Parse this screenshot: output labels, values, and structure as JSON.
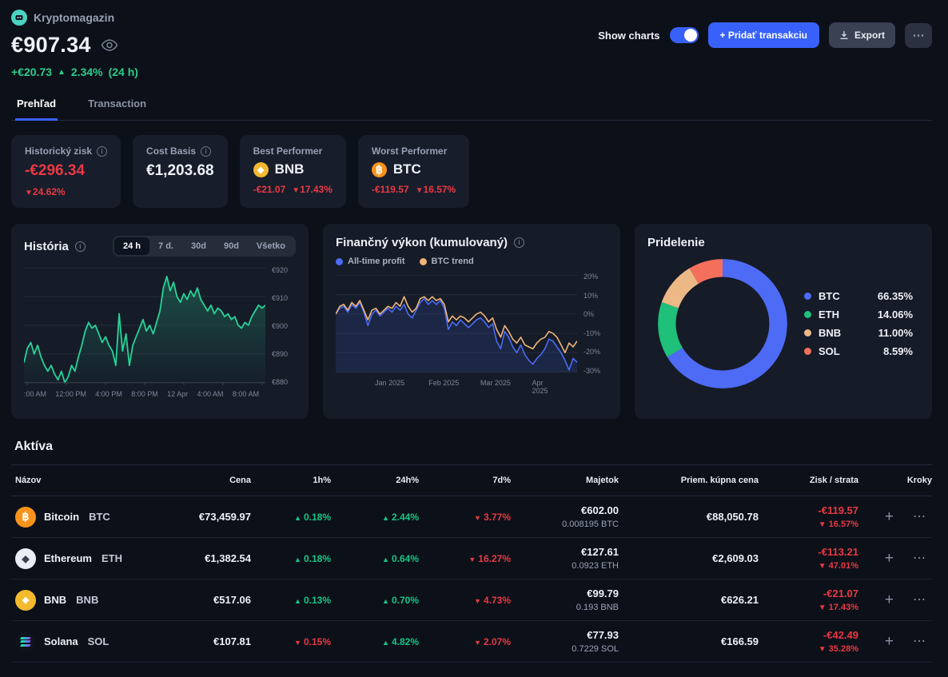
{
  "app": {
    "name": "Kryptomagazin"
  },
  "header": {
    "balance": "€907.34",
    "change_amount": "+€20.73",
    "change_pct": "2.34%",
    "change_period": "(24 h)",
    "show_charts_label": "Show charts",
    "add_transaction_label": "+ Pridať transakciu",
    "export_label": "Export",
    "more_label": "⋯"
  },
  "tabs": [
    {
      "label": "Prehľad",
      "active": true
    },
    {
      "label": "Transaction",
      "active": false
    }
  ],
  "stat_cards": [
    {
      "label": "Historický zisk",
      "value": "-€296.34",
      "change_pct": "24.62%",
      "direction": "down"
    },
    {
      "label": "Cost Basis",
      "value": "€1,203.68"
    },
    {
      "label": "Best Performer",
      "coin": "BNB",
      "change_amount": "-€21.07",
      "change_pct": "17.43%",
      "direction": "down"
    },
    {
      "label": "Worst Performer",
      "coin": "BTC",
      "change_amount": "-€119.57",
      "change_pct": "16.57%",
      "direction": "down"
    }
  ],
  "history": {
    "title": "História",
    "ranges": [
      "24 h",
      "7 d.",
      "30d",
      "90d",
      "Všetko"
    ],
    "active_range": "24 h",
    "y_ticks": [
      "€920",
      "€910",
      "€900",
      "€890",
      "€880"
    ],
    "x_ticks": [
      ":00 AM",
      "12:00 PM",
      "4:00 PM",
      "8:00 PM",
      "12 Apr",
      "4:00 AM",
      "8:00 AM"
    ],
    "y_min": 880,
    "y_max": 920,
    "line_color": "#27d397",
    "values": [
      887,
      892,
      894,
      890,
      893,
      889,
      886,
      884,
      886,
      883,
      881,
      884,
      880,
      882,
      886,
      884,
      889,
      893,
      898,
      901,
      899,
      900,
      897,
      894,
      896,
      893,
      891,
      886,
      904,
      891,
      897,
      886,
      893,
      896,
      899,
      902,
      898,
      900,
      897,
      901,
      905,
      913,
      917,
      912,
      915,
      910,
      908,
      911,
      909,
      912,
      910,
      913,
      909,
      907,
      905,
      907,
      904,
      906,
      905,
      903,
      904,
      902,
      903,
      900,
      899,
      901,
      900,
      903,
      905,
      907,
      906,
      907
    ]
  },
  "performance": {
    "title": "Finančný výkon (kumulovaný)",
    "y_ticks": [
      "20%",
      "10%",
      "0%",
      "-10%",
      "-20%",
      "-30%"
    ],
    "x_ticks": [
      "Jan 2025",
      "Feb 2025",
      "Mar 2025",
      "Apr 2025"
    ],
    "x_tick_pos": [
      23,
      46,
      68,
      89
    ],
    "y_min": -30,
    "y_max": 20,
    "series": [
      {
        "name": "All-time profit",
        "color": "#4a6cf5",
        "values": [
          0,
          3,
          4,
          1,
          5,
          3,
          6,
          1,
          -6,
          0,
          2,
          -1,
          1,
          3,
          1,
          4,
          2,
          5,
          0,
          -2,
          2,
          6,
          8,
          5,
          7,
          5,
          7,
          3,
          -8,
          -4,
          -6,
          -3,
          -5,
          -7,
          -5,
          -3,
          -2,
          -4,
          -7,
          -5,
          -14,
          -18,
          -9,
          -12,
          -17,
          -20,
          -16,
          -21,
          -24,
          -26,
          -23,
          -21,
          -18,
          -13,
          -14,
          -17,
          -20,
          -24,
          -29,
          -23,
          -25
        ]
      },
      {
        "name": "BTC trend",
        "color": "#efb477",
        "values": [
          0,
          4,
          5,
          2,
          6,
          4,
          7,
          2,
          -3,
          2,
          3,
          0,
          2,
          4,
          3,
          6,
          4,
          9,
          4,
          1,
          3,
          8,
          9,
          7,
          9,
          7,
          8,
          5,
          -4,
          -1,
          -3,
          -1,
          -2,
          -4,
          -2,
          0,
          1,
          -1,
          -4,
          -2,
          -8,
          -12,
          -6,
          -9,
          -13,
          -15,
          -12,
          -16,
          -17,
          -18,
          -15,
          -13,
          -12,
          -9,
          -10,
          -12,
          -16,
          -20,
          -15,
          -17,
          -14
        ]
      }
    ]
  },
  "allocation": {
    "title": "Pridelenie",
    "items": [
      {
        "label": "BTC",
        "pct": "66.35%",
        "value": 66.35,
        "color": "#4e6bf5"
      },
      {
        "label": "ETH",
        "pct": "14.06%",
        "value": 14.06,
        "color": "#1ec07a"
      },
      {
        "label": "BNB",
        "pct": "11.00%",
        "value": 11.0,
        "color": "#ecb886"
      },
      {
        "label": "SOL",
        "pct": "8.59%",
        "value": 8.59,
        "color": "#f4705c"
      }
    ]
  },
  "assets": {
    "title": "Aktíva",
    "columns": [
      "Názov",
      "Cena",
      "1h%",
      "24h%",
      "7d%",
      "Majetok",
      "Priem. kúpna cena",
      "Zisk / strata",
      "Kroky"
    ],
    "row_actions": {
      "add": "+",
      "more": "⋯"
    },
    "rows": [
      {
        "name": "Bitcoin",
        "symbol": "BTC",
        "icon": "btc",
        "price": "€73,459.97",
        "h1_dir": "up",
        "h1": "0.18%",
        "h24_dir": "up",
        "h24": "2.44%",
        "d7_dir": "down",
        "d7": "3.77%",
        "holdings_value": "€602.00",
        "holdings_amount": "0.008195 BTC",
        "avg_buy_price": "€88,050.78",
        "pl_value": "-€119.57",
        "pl_dir": "down",
        "pl_pct": "16.57%"
      },
      {
        "name": "Ethereum",
        "symbol": "ETH",
        "icon": "eth",
        "price": "€1,382.54",
        "h1_dir": "up",
        "h1": "0.18%",
        "h24_dir": "up",
        "h24": "0.64%",
        "d7_dir": "down",
        "d7": "16.27%",
        "holdings_value": "€127.61",
        "holdings_amount": "0.0923 ETH",
        "avg_buy_price": "€2,609.03",
        "pl_value": "-€113.21",
        "pl_dir": "down",
        "pl_pct": "47.01%"
      },
      {
        "name": "BNB",
        "symbol": "BNB",
        "icon": "bnb",
        "price": "€517.06",
        "h1_dir": "up",
        "h1": "0.13%",
        "h24_dir": "up",
        "h24": "0.70%",
        "d7_dir": "down",
        "d7": "4.73%",
        "holdings_value": "€99.79",
        "holdings_amount": "0.193 BNB",
        "avg_buy_price": "€626.21",
        "pl_value": "-€21.07",
        "pl_dir": "down",
        "pl_pct": "17.43%"
      },
      {
        "name": "Solana",
        "symbol": "SOL",
        "icon": "sol",
        "price": "€107.81",
        "h1_dir": "down",
        "h1": "0.15%",
        "h24_dir": "up",
        "h24": "4.82%",
        "d7_dir": "down",
        "d7": "2.07%",
        "holdings_value": "€77.93",
        "holdings_amount": "0.7229 SOL",
        "avg_buy_price": "€166.59",
        "pl_value": "-€42.49",
        "pl_dir": "down",
        "pl_pct": "35.28%"
      }
    ]
  },
  "colors": {
    "accent_blue": "#3861fb",
    "green": "#16c784",
    "red": "#ea3943"
  }
}
